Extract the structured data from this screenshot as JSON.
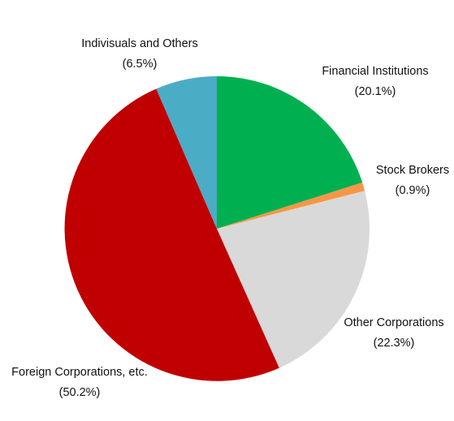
{
  "chart_data": {
    "type": "pie",
    "start_angle": "12 o'clock",
    "direction": "clockwise",
    "slices": [
      {
        "label": "Financial Institutions",
        "pct_label": "(20.1%)",
        "value": 20.1,
        "color": "#00b050"
      },
      {
        "label": "Stock Brokers",
        "pct_label": "(0.9%)",
        "value": 0.9,
        "color": "#f79646"
      },
      {
        "label": "Other Corporations",
        "pct_label": "(22.3%)",
        "value": 22.3,
        "color": "#d9d9d9"
      },
      {
        "label": "Foreign Corporations, etc.",
        "pct_label": "(50.2%)",
        "value": 50.2,
        "color": "#c00000"
      },
      {
        "label": "Indivisuals and Others",
        "pct_label": "(6.5%)",
        "value": 6.5,
        "color": "#4bacc6"
      }
    ]
  }
}
